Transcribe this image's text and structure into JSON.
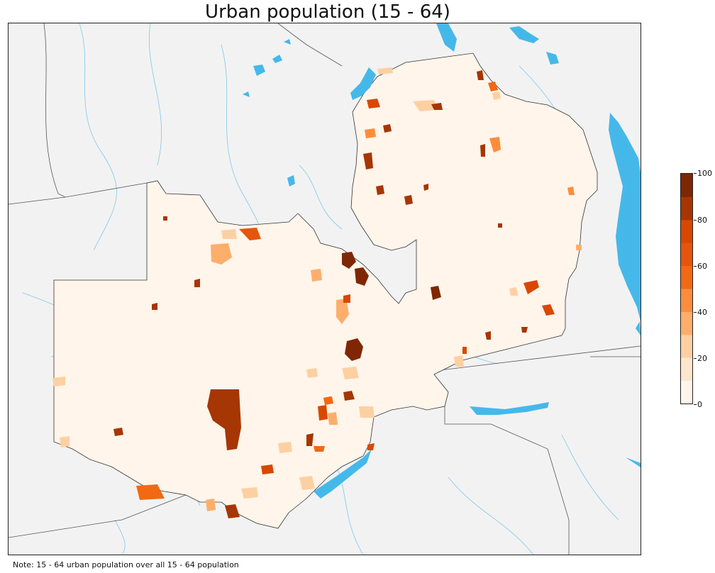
{
  "title": "Urban population (15 - 64)",
  "note": "Note: 15 - 64 urban population over all 15 - 64 population",
  "colorbar": {
    "min": 0,
    "max": 100,
    "ticks": [
      "0",
      "20",
      "40",
      "60",
      "80",
      "100"
    ],
    "tick_values": [
      0,
      20,
      40,
      60,
      80,
      100
    ],
    "bins": [
      0,
      10,
      20,
      30,
      40,
      50,
      60,
      70,
      80,
      90,
      100
    ],
    "colors": [
      "#fff5eb",
      "#fee6ce",
      "#fdd0a2",
      "#fdae6b",
      "#fd8d3c",
      "#f16913",
      "#e6550d",
      "#d94801",
      "#a63603",
      "#7f2704"
    ]
  },
  "map": {
    "water_color": "#45b8ea",
    "land_background": "#f2f2f2",
    "country_fill": "#fff5eb",
    "border_color": "#333333"
  }
}
